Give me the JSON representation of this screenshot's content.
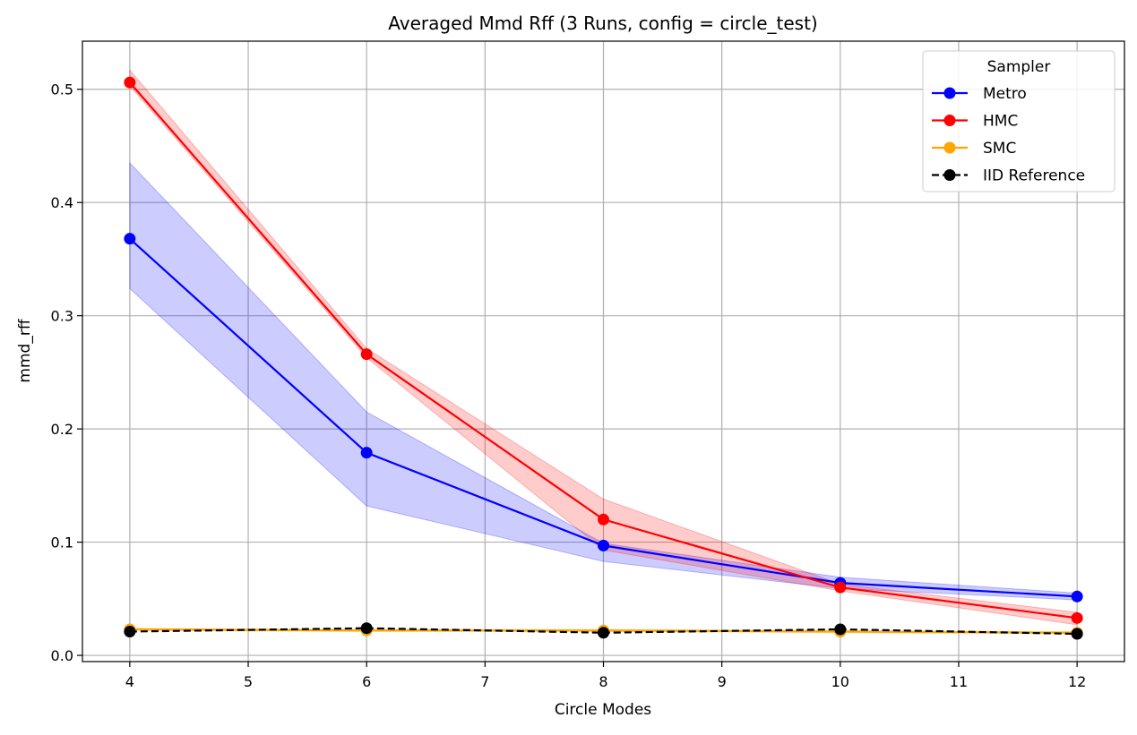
{
  "chart_data": {
    "type": "line",
    "title": "Averaged Mmd Rff (3 Runs, config = circle_test)",
    "xlabel": "Circle Modes",
    "ylabel": "mmd_rff",
    "xlim": [
      3.6,
      12.4
    ],
    "ylim": [
      -0.0055,
      0.5425
    ],
    "xticks": [
      4,
      5,
      6,
      7,
      8,
      9,
      10,
      11,
      12
    ],
    "yticks": [
      0.0,
      0.1,
      0.2,
      0.3,
      0.4,
      0.5
    ],
    "ytick_labels": [
      "0.0",
      "0.1",
      "0.2",
      "0.3",
      "0.4",
      "0.5"
    ],
    "grid": true,
    "legend": {
      "title": "Sampler",
      "position": "top-right"
    },
    "x": [
      4,
      6,
      8,
      10,
      12
    ],
    "series": [
      {
        "name": "Metro",
        "color": "#0000ff",
        "linestyle": "solid",
        "values": [
          0.368,
          0.179,
          0.097,
          0.064,
          0.052
        ],
        "band_lower": [
          0.324,
          0.132,
          0.083,
          0.059,
          0.049
        ],
        "band_upper": [
          0.435,
          0.215,
          0.099,
          0.069,
          0.055
        ]
      },
      {
        "name": "HMC",
        "color": "#ff0000",
        "linestyle": "solid",
        "values": [
          0.506,
          0.266,
          0.12,
          0.06,
          0.033
        ],
        "band_lower": [
          0.503,
          0.263,
          0.093,
          0.057,
          0.027
        ],
        "band_upper": [
          0.517,
          0.271,
          0.138,
          0.063,
          0.038
        ]
      },
      {
        "name": "SMC",
        "color": "#ffa500",
        "linestyle": "solid",
        "values": [
          0.023,
          0.022,
          0.022,
          0.021,
          0.02
        ],
        "band_lower": [
          0.022,
          0.021,
          0.021,
          0.02,
          0.019
        ],
        "band_upper": [
          0.024,
          0.023,
          0.023,
          0.022,
          0.021
        ]
      },
      {
        "name": "IID Reference",
        "color": "#000000",
        "linestyle": "dashed",
        "values": [
          0.021,
          0.024,
          0.02,
          0.023,
          0.019
        ]
      }
    ]
  }
}
